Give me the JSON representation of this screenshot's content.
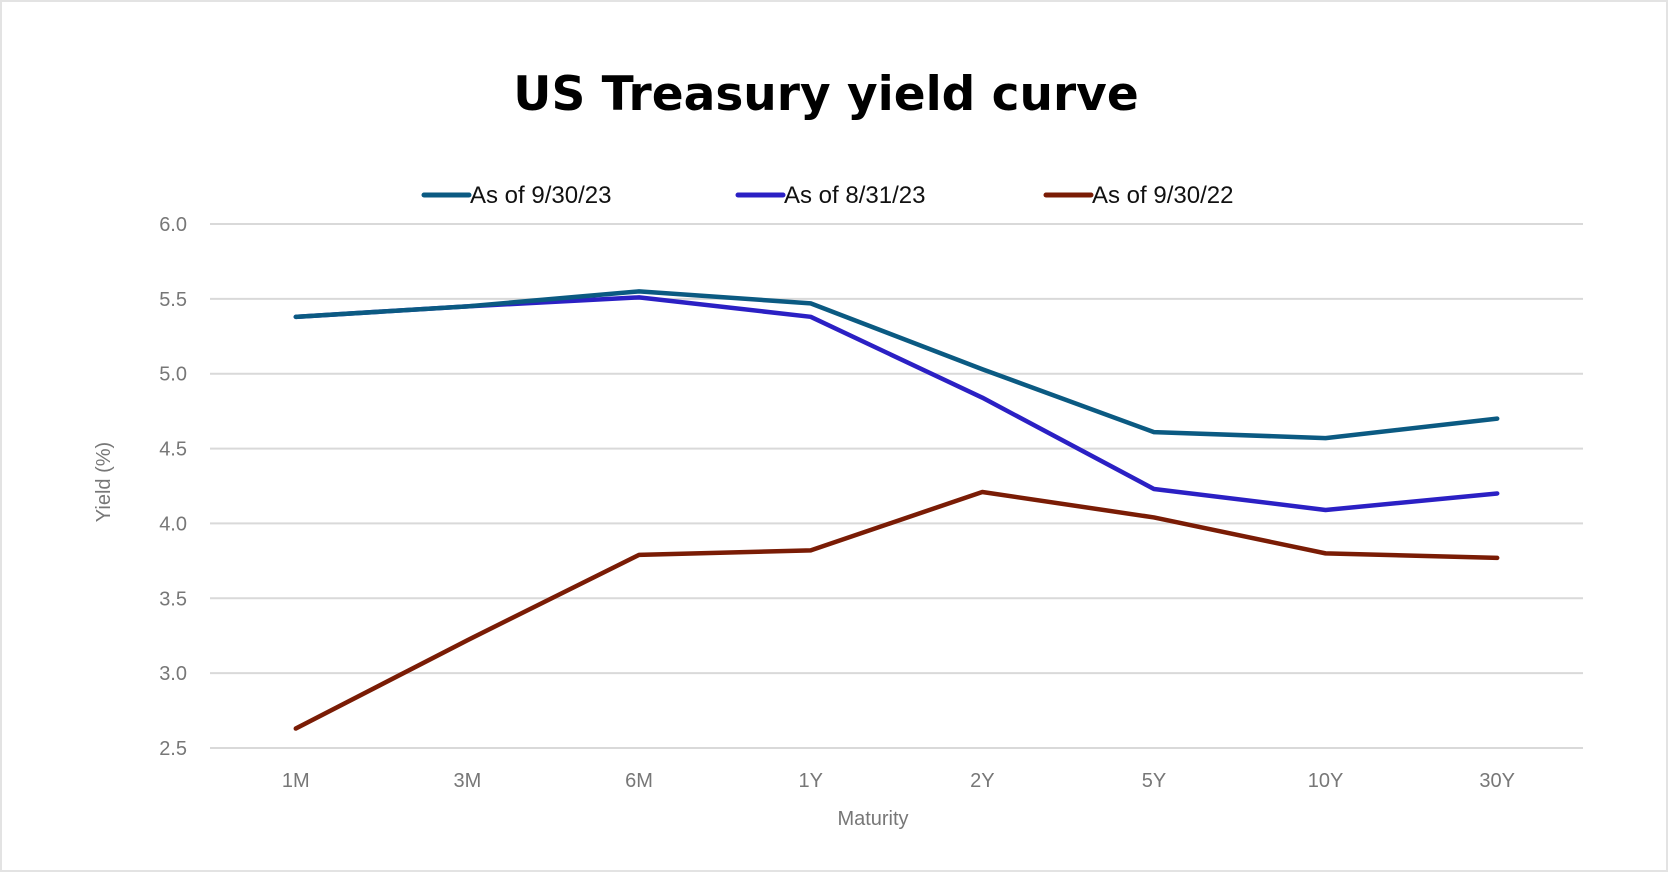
{
  "chart_data": {
    "type": "line",
    "title": "US Treasury yield curve",
    "xlabel": "Maturity",
    "ylabel": "Yield (%)",
    "categories": [
      "1M",
      "3M",
      "6M",
      "1Y",
      "2Y",
      "5Y",
      "10Y",
      "30Y"
    ],
    "ylim": [
      2.5,
      6.0
    ],
    "yticks": [
      "2.5",
      "3.0",
      "3.5",
      "4.0",
      "4.5",
      "5.0",
      "5.5",
      "6.0"
    ],
    "grid": true,
    "legend_position": "top",
    "series": [
      {
        "name": "As of 9/30/23",
        "color": "#0b5a82",
        "values": [
          5.38,
          5.45,
          5.55,
          5.47,
          5.03,
          4.61,
          4.57,
          4.7
        ]
      },
      {
        "name": "As of 8/31/23",
        "color": "#2b20c4",
        "values": [
          5.38,
          5.45,
          5.51,
          5.38,
          4.84,
          4.23,
          4.09,
          4.2
        ]
      },
      {
        "name": "As of 9/30/22",
        "color": "#7a1c05",
        "values": [
          2.63,
          3.22,
          3.79,
          3.82,
          4.21,
          4.04,
          3.8,
          3.77
        ]
      }
    ]
  }
}
